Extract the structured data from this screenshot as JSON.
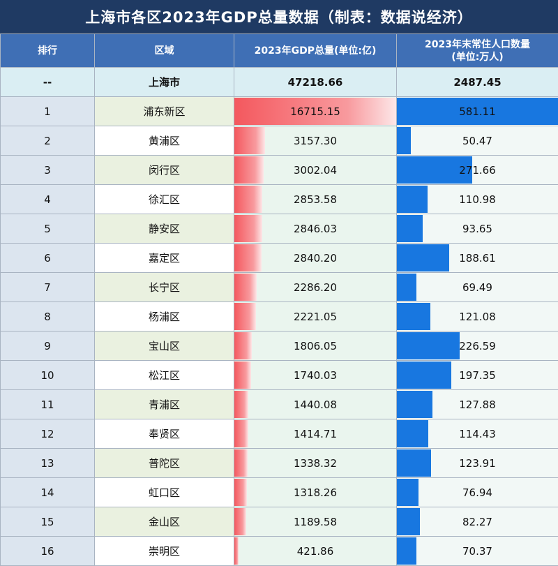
{
  "title": "上海市各区2023年GDP总量数据（制表：数据说经济）",
  "columns": {
    "rank": "排行",
    "district": "区域",
    "gdp": "2023年GDP总量(单位:亿)",
    "pop_line1": "2023年末常住人口数量",
    "pop_line2": "(单位:万人)"
  },
  "summary": {
    "rank": "--",
    "district": "上海市",
    "gdp": "47218.66",
    "pop": "2487.45"
  },
  "colors": {
    "title_bg": "#1f3a63",
    "header_bg": "#3f6fb5",
    "gdp_bar": "#f4585e",
    "pop_bar": "#1877e0"
  },
  "chart_data": {
    "type": "table",
    "title": "上海市各区2023年GDP总量数据（制表：数据说经济）",
    "rows": [
      {
        "rank": "1",
        "district": "浦东新区",
        "gdp": 16715.15,
        "gdp_text": "16715.15",
        "pop": 581.11,
        "pop_text": "581.11"
      },
      {
        "rank": "2",
        "district": "黄浦区",
        "gdp": 3157.3,
        "gdp_text": "3157.30",
        "pop": 50.47,
        "pop_text": "50.47"
      },
      {
        "rank": "3",
        "district": "闵行区",
        "gdp": 3002.04,
        "gdp_text": "3002.04",
        "pop": 271.66,
        "pop_text": "271.66"
      },
      {
        "rank": "4",
        "district": "徐汇区",
        "gdp": 2853.58,
        "gdp_text": "2853.58",
        "pop": 110.98,
        "pop_text": "110.98"
      },
      {
        "rank": "5",
        "district": "静安区",
        "gdp": 2846.03,
        "gdp_text": "2846.03",
        "pop": 93.65,
        "pop_text": "93.65"
      },
      {
        "rank": "6",
        "district": "嘉定区",
        "gdp": 2840.2,
        "gdp_text": "2840.20",
        "pop": 188.61,
        "pop_text": "188.61"
      },
      {
        "rank": "7",
        "district": "长宁区",
        "gdp": 2286.2,
        "gdp_text": "2286.20",
        "pop": 69.49,
        "pop_text": "69.49"
      },
      {
        "rank": "8",
        "district": "杨浦区",
        "gdp": 2221.05,
        "gdp_text": "2221.05",
        "pop": 121.08,
        "pop_text": "121.08"
      },
      {
        "rank": "9",
        "district": "宝山区",
        "gdp": 1806.05,
        "gdp_text": "1806.05",
        "pop": 226.59,
        "pop_text": "226.59"
      },
      {
        "rank": "10",
        "district": "松江区",
        "gdp": 1740.03,
        "gdp_text": "1740.03",
        "pop": 197.35,
        "pop_text": "197.35"
      },
      {
        "rank": "11",
        "district": "青浦区",
        "gdp": 1440.08,
        "gdp_text": "1440.08",
        "pop": 127.88,
        "pop_text": "127.88"
      },
      {
        "rank": "12",
        "district": "奉贤区",
        "gdp": 1414.71,
        "gdp_text": "1414.71",
        "pop": 114.43,
        "pop_text": "114.43"
      },
      {
        "rank": "13",
        "district": "普陀区",
        "gdp": 1338.32,
        "gdp_text": "1338.32",
        "pop": 123.91,
        "pop_text": "123.91"
      },
      {
        "rank": "14",
        "district": "虹口区",
        "gdp": 1318.26,
        "gdp_text": "1318.26",
        "pop": 76.94,
        "pop_text": "76.94"
      },
      {
        "rank": "15",
        "district": "金山区",
        "gdp": 1189.58,
        "gdp_text": "1189.58",
        "pop": 82.27,
        "pop_text": "82.27"
      },
      {
        "rank": "16",
        "district": "崇明区",
        "gdp": 421.86,
        "gdp_text": "421.86",
        "pop": 70.37,
        "pop_text": "70.37"
      }
    ]
  }
}
